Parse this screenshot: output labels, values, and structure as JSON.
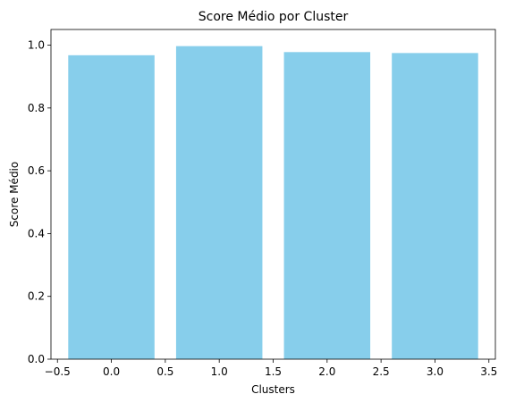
{
  "chart_data": {
    "type": "bar",
    "title": "Score Médio por Cluster",
    "xlabel": "Clusters",
    "ylabel": "Score Médio",
    "x": [
      0,
      1,
      2,
      3
    ],
    "values": [
      0.968,
      0.997,
      0.978,
      0.975
    ],
    "bar_width": 0.8,
    "xlim": [
      -0.56,
      3.56
    ],
    "ylim": [
      0,
      1.05
    ],
    "xticks": [
      -0.5,
      0.0,
      0.5,
      1.0,
      1.5,
      2.0,
      2.5,
      3.0,
      3.5
    ],
    "xtick_labels": [
      "−0.5",
      "0.0",
      "0.5",
      "1.0",
      "1.5",
      "2.0",
      "2.5",
      "3.0",
      "3.5"
    ],
    "yticks": [
      0.0,
      0.2,
      0.4,
      0.6,
      0.8,
      1.0
    ],
    "ytick_labels": [
      "0.0",
      "0.2",
      "0.4",
      "0.6",
      "0.8",
      "1.0"
    ],
    "grid": false,
    "bar_color": "#87ceeb",
    "axis_color": "#000000"
  }
}
